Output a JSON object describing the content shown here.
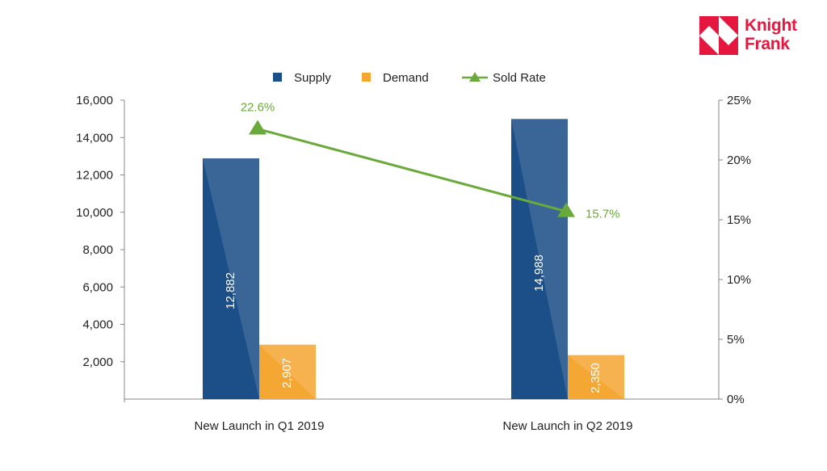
{
  "brand": {
    "line1": "Knight",
    "line2": "Frank",
    "color": "#e5173f"
  },
  "chart_data": {
    "type": "bar",
    "categories": [
      "New Launch in Q1 2019",
      "New Launch in Q2 2019"
    ],
    "series": [
      {
        "name": "Supply",
        "kind": "bar",
        "axis": "left",
        "color": "#1c4f87",
        "values": [
          12882,
          14988
        ],
        "labels": [
          "12,882",
          "14,988"
        ]
      },
      {
        "name": "Demand",
        "kind": "bar",
        "axis": "left",
        "color": "#f5a733",
        "values": [
          2907,
          2350
        ],
        "labels": [
          "2,907",
          "2,350"
        ]
      },
      {
        "name": "Sold Rate",
        "kind": "line",
        "axis": "right",
        "color": "#6aaa3a",
        "values": [
          22.6,
          15.7
        ],
        "labels": [
          "22.6%",
          "15.7%"
        ]
      }
    ],
    "y_left": {
      "min": 0,
      "max": 16000,
      "ticks": [
        2000,
        4000,
        6000,
        8000,
        10000,
        12000,
        14000,
        16000
      ],
      "tick_labels": [
        "2,000",
        "4,000",
        "6,000",
        "8,000",
        "10,000",
        "12,000",
        "14,000",
        "16,000"
      ]
    },
    "y_right": {
      "min": 0,
      "max": 25,
      "ticks": [
        0,
        5,
        10,
        15,
        20,
        25
      ],
      "tick_labels": [
        "0%",
        "5%",
        "10%",
        "15%",
        "20%",
        "25%"
      ]
    },
    "legend": {
      "position": "top"
    },
    "grid": false
  }
}
